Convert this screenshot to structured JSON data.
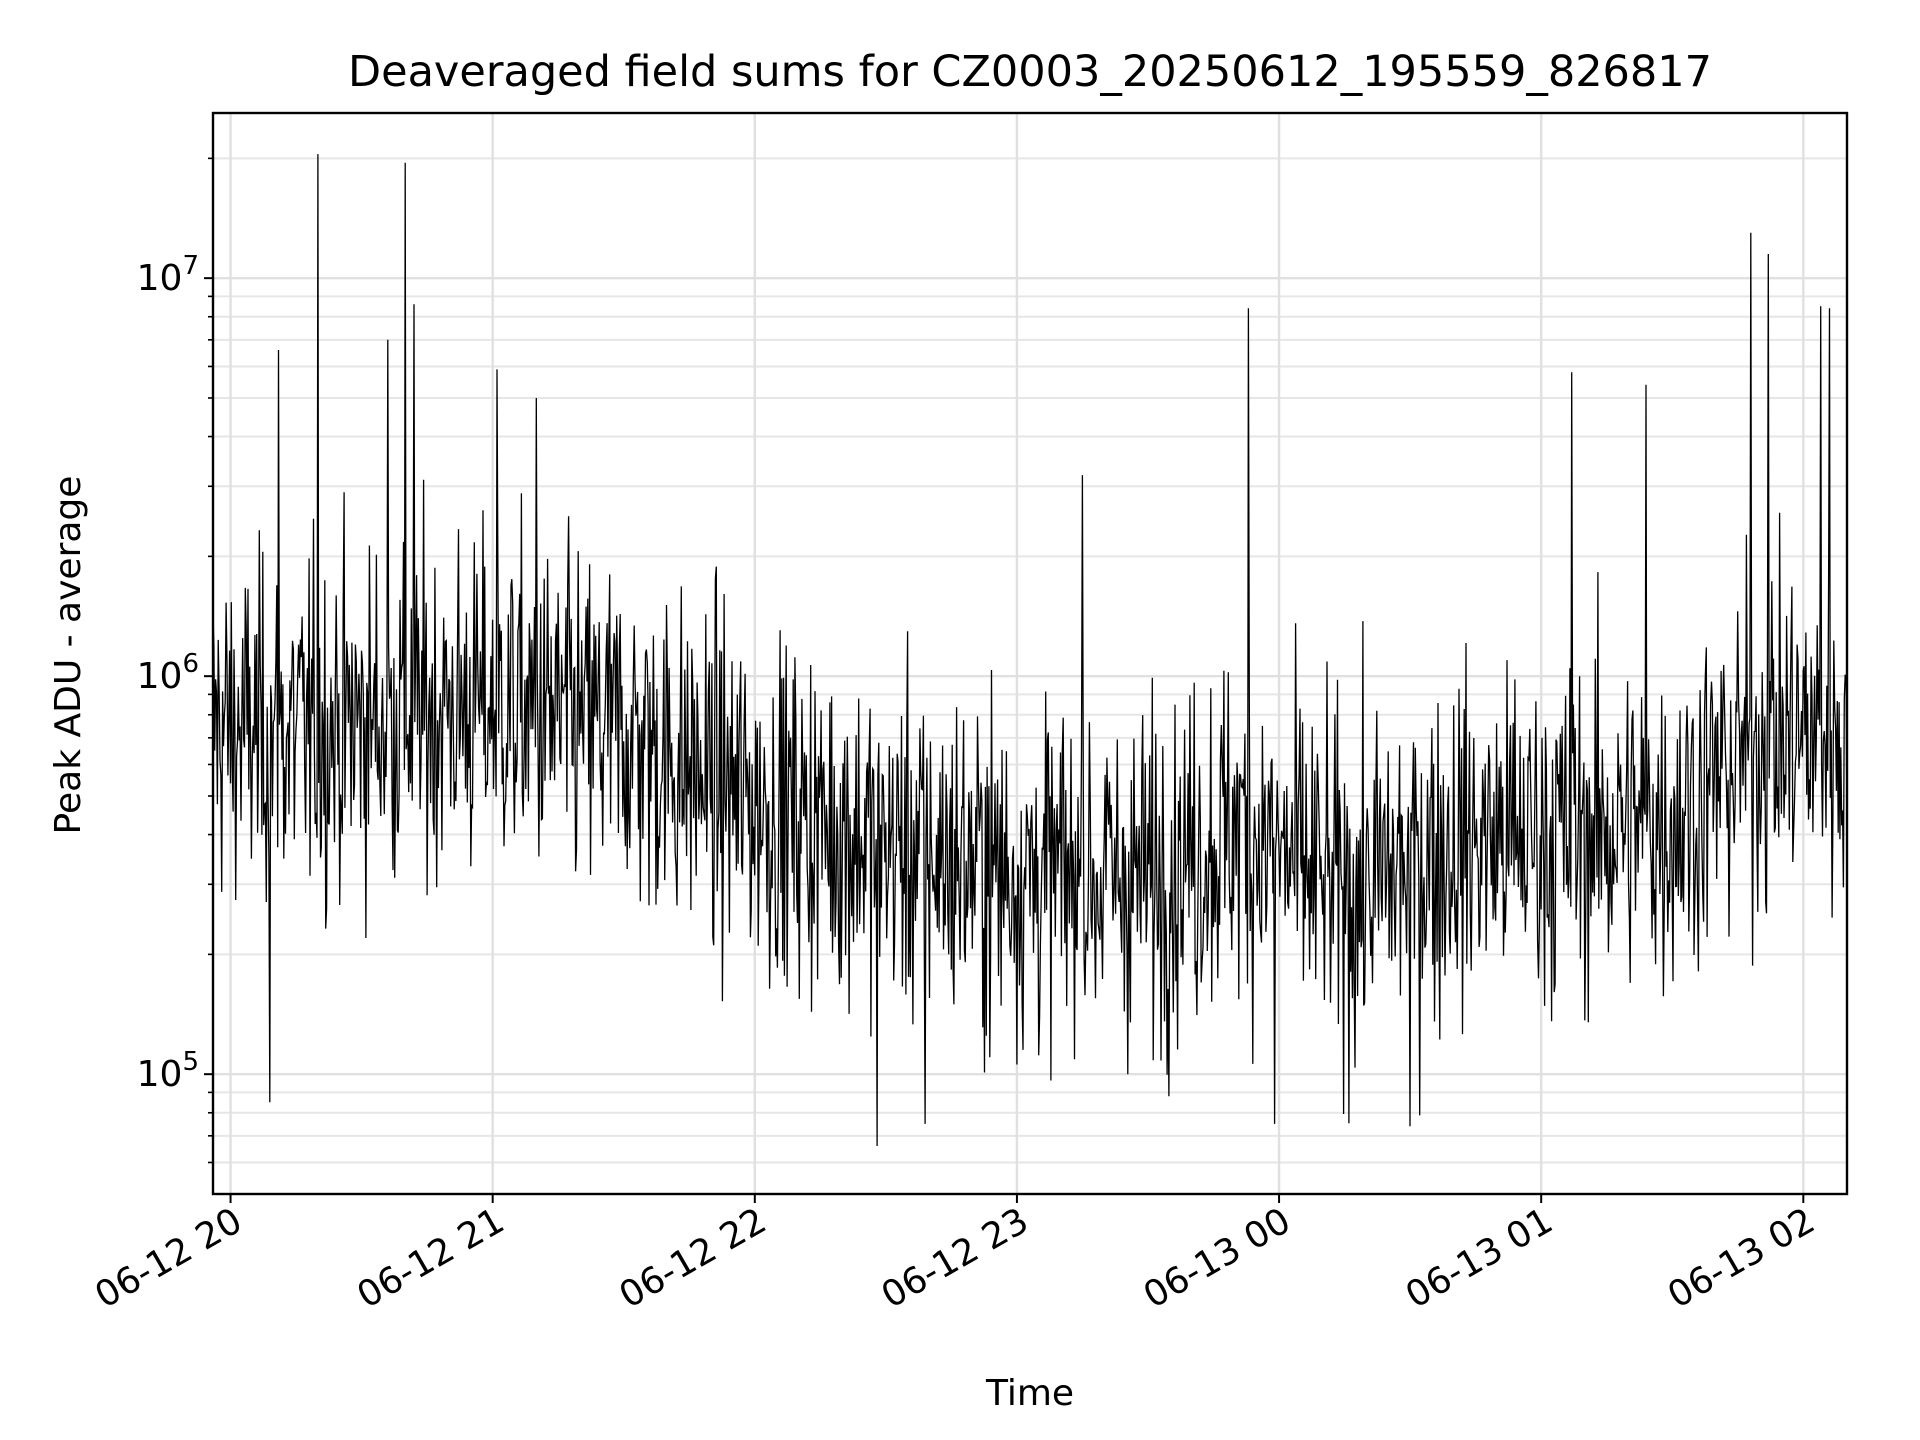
{
  "chart_data": {
    "type": "line",
    "title": "Deaveraged field sums for CZ0003_20250612_195559_826817",
    "xlabel": "Time",
    "ylabel": "Peak ADU - average",
    "yscale": "log",
    "ylim": [
      50000,
      26000000
    ],
    "xlim": [
      "2025-06-12 19:55:59",
      "2025-06-13 02:10:00"
    ],
    "grid": "on (major and minor)",
    "line_color": "#000000",
    "x_ticks": [
      {
        "label": "06-12 20",
        "t": "2025-06-12 20:00"
      },
      {
        "label": "06-12 21",
        "t": "2025-06-12 21:00"
      },
      {
        "label": "06-12 22",
        "t": "2025-06-12 22:00"
      },
      {
        "label": "06-12 23",
        "t": "2025-06-12 23:00"
      },
      {
        "label": "06-13 00",
        "t": "2025-06-13 00:00"
      },
      {
        "label": "06-13 01",
        "t": "2025-06-13 01:00"
      },
      {
        "label": "06-13 02",
        "t": "2025-06-13 02:00"
      }
    ],
    "y_ticks": [
      {
        "base": "10",
        "exp": "5",
        "value": 100000
      },
      {
        "base": "10",
        "exp": "6",
        "value": 1000000
      },
      {
        "base": "10",
        "exp": "7",
        "value": 10000000
      }
    ],
    "series": [
      {
        "sampling": "approximately 20-second intervals; baseline trend with large high-frequency scatter (log-normal noise)",
        "trend": [
          {
            "t": "2025-06-12 19:56",
            "median": 750000
          },
          {
            "t": "2025-06-12 20:10",
            "median": 700000
          },
          {
            "t": "2025-06-12 20:40",
            "median": 800000
          },
          {
            "t": "2025-06-12 21:00",
            "median": 850000
          },
          {
            "t": "2025-06-12 21:30",
            "median": 720000
          },
          {
            "t": "2025-06-12 22:00",
            "median": 480000
          },
          {
            "t": "2025-06-12 22:30",
            "median": 380000
          },
          {
            "t": "2025-06-12 23:00",
            "median": 320000
          },
          {
            "t": "2025-06-12 23:30",
            "median": 310000
          },
          {
            "t": "2025-06-12 23:50",
            "median": 420000
          },
          {
            "t": "2025-06-13 00:15",
            "median": 280000
          },
          {
            "t": "2025-06-13 00:40",
            "median": 380000
          },
          {
            "t": "2025-06-13 01:00",
            "median": 400000
          },
          {
            "t": "2025-06-13 01:30",
            "median": 430000
          },
          {
            "t": "2025-06-13 01:50",
            "median": 700000
          },
          {
            "t": "2025-06-13 02:10",
            "median": 700000
          }
        ],
        "spikes": [
          {
            "t": "2025-06-12 20:09",
            "value": 85000
          },
          {
            "t": "2025-06-12 20:20",
            "value": 20500000
          },
          {
            "t": "2025-06-12 20:40",
            "value": 19500000
          },
          {
            "t": "2025-06-12 20:42",
            "value": 8600000
          },
          {
            "t": "2025-06-12 20:36",
            "value": 7000000
          },
          {
            "t": "2025-06-12 20:11",
            "value": 6600000
          },
          {
            "t": "2025-06-12 21:01",
            "value": 5900000
          },
          {
            "t": "2025-06-12 21:10",
            "value": 5000000
          },
          {
            "t": "2025-06-12 22:28",
            "value": 66000
          },
          {
            "t": "2025-06-12 22:39",
            "value": 75000
          },
          {
            "t": "2025-06-12 23:15",
            "value": 3200000
          },
          {
            "t": "2025-06-12 23:53",
            "value": 8400000
          },
          {
            "t": "2025-06-12 23:59",
            "value": 75000
          },
          {
            "t": "2025-06-13 00:30",
            "value": 74000
          },
          {
            "t": "2025-06-13 01:07",
            "value": 5800000
          },
          {
            "t": "2025-06-13 01:24",
            "value": 5400000
          },
          {
            "t": "2025-06-13 01:48",
            "value": 13000000
          },
          {
            "t": "2025-06-13 01:52",
            "value": 11500000
          },
          {
            "t": "2025-06-13 02:04",
            "value": 8500000
          },
          {
            "t": "2025-06-13 02:06",
            "value": 8400000
          }
        ]
      }
    ]
  }
}
